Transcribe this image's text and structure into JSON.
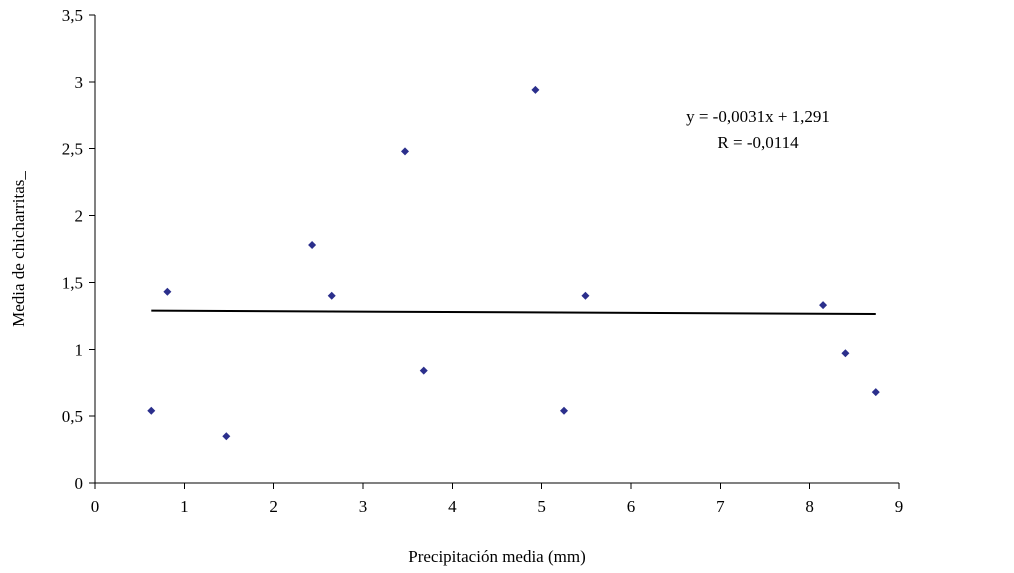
{
  "chart_data": {
    "type": "scatter",
    "xlabel": "Precipitación media (mm)",
    "ylabel": "Media de chicharritas_",
    "xlim": [
      0,
      9
    ],
    "ylim": [
      0,
      3.5
    ],
    "xticks": [
      0,
      1,
      2,
      3,
      4,
      5,
      6,
      7,
      8,
      9
    ],
    "yticks": [
      0,
      0.5,
      1,
      1.5,
      2,
      2.5,
      3,
      3.5
    ],
    "x_tick_labels": [
      "0",
      "1",
      "2",
      "3",
      "4",
      "5",
      "6",
      "7",
      "8",
      "9"
    ],
    "y_tick_labels": [
      "0",
      "0,5",
      "1",
      "1,5",
      "2",
      "2,5",
      "3",
      "3,5"
    ],
    "grid": false,
    "marker_color": "#2b2f8c",
    "trendline_color": "#000000",
    "points": [
      {
        "x": 0.63,
        "y": 0.54
      },
      {
        "x": 0.81,
        "y": 1.43
      },
      {
        "x": 1.47,
        "y": 0.35
      },
      {
        "x": 2.43,
        "y": 1.78
      },
      {
        "x": 2.65,
        "y": 1.4
      },
      {
        "x": 3.47,
        "y": 2.48
      },
      {
        "x": 3.68,
        "y": 0.84
      },
      {
        "x": 4.93,
        "y": 2.94
      },
      {
        "x": 5.25,
        "y": 0.54
      },
      {
        "x": 5.49,
        "y": 1.4
      },
      {
        "x": 8.15,
        "y": 1.33
      },
      {
        "x": 8.4,
        "y": 0.97
      },
      {
        "x": 8.74,
        "y": 0.68
      }
    ],
    "trendline": {
      "type": "linear",
      "slope": -0.0031,
      "intercept": 1.291,
      "x_range": [
        0.63,
        8.74
      ]
    },
    "annotations": [
      "y = -0,0031x + 1,291",
      "R = -0,0114"
    ]
  }
}
